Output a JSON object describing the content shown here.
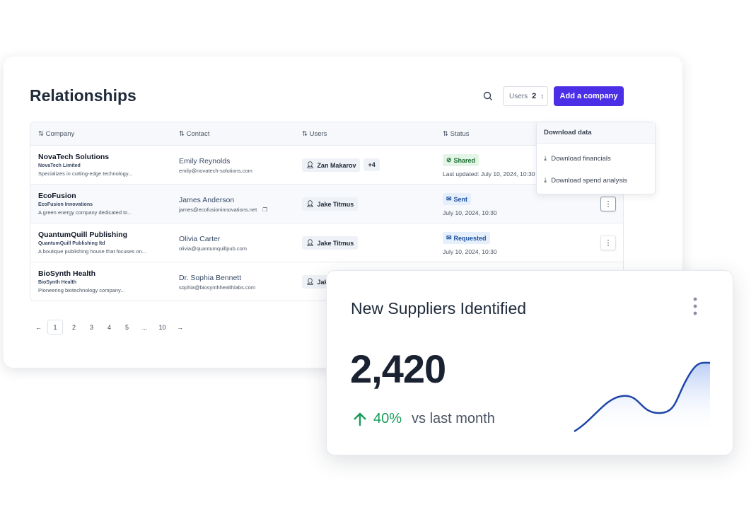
{
  "page": {
    "title": "Relationships",
    "users_filter_label": "Users",
    "users_filter_count": "2",
    "add_button": "Add a company"
  },
  "table": {
    "headers": [
      "Company",
      "Contact",
      "Users",
      "Status"
    ],
    "rows": [
      {
        "company": "NovaTech Solutions",
        "legal": "NovaTech Limited",
        "desc": "Specializes in cutting-edge technology...",
        "contact": "Emily Reynolds",
        "email": "emily@novatech-solutions.com",
        "user": "Zan Makarov",
        "extra": "+4",
        "status": "Shared",
        "date": "Last updated: July 10, 2024, 10:30"
      },
      {
        "company": "EcoFusion",
        "legal": "EcoFusion Innovations",
        "desc": "A green energy company dedicated to...",
        "contact": "James Anderson",
        "email": "james@ecofusioninnovations.net",
        "user": "Jake Titmus",
        "status": "Sent",
        "date": "July 10, 2024, 10:30"
      },
      {
        "company": "QuantumQuill Publishing",
        "legal": "QuantumQuill Publishing ltd",
        "desc": "A boutique publishing house that focuses on...",
        "contact": "Olivia Carter",
        "email": "olivia@quantumquillpub.com",
        "user": "Jake Titmus",
        "status": "Requested",
        "date": "July 10, 2024, 10:30"
      },
      {
        "company": "BioSynth Health",
        "legal": "BioSynth Health",
        "desc": "Pioneering biotechnology company...",
        "contact": "Dr. Sophia Bennett",
        "email": "sophia@biosynthhealthlabs.com",
        "user": "Jake Titmus"
      }
    ]
  },
  "pagination": {
    "prev": "←",
    "pages": [
      "1",
      "2",
      "3",
      "4",
      "5",
      "...",
      "10"
    ],
    "next": "→",
    "current": "1"
  },
  "dropdown": {
    "title": "Download data",
    "items": [
      "Download financials",
      "Download spend analysis"
    ]
  },
  "widget": {
    "title": "New Suppliers Identified",
    "value": "2,420",
    "change": "40%",
    "compare": "vs last month",
    "accent": "#1a9c5b",
    "line_color": "#1e46a8"
  }
}
